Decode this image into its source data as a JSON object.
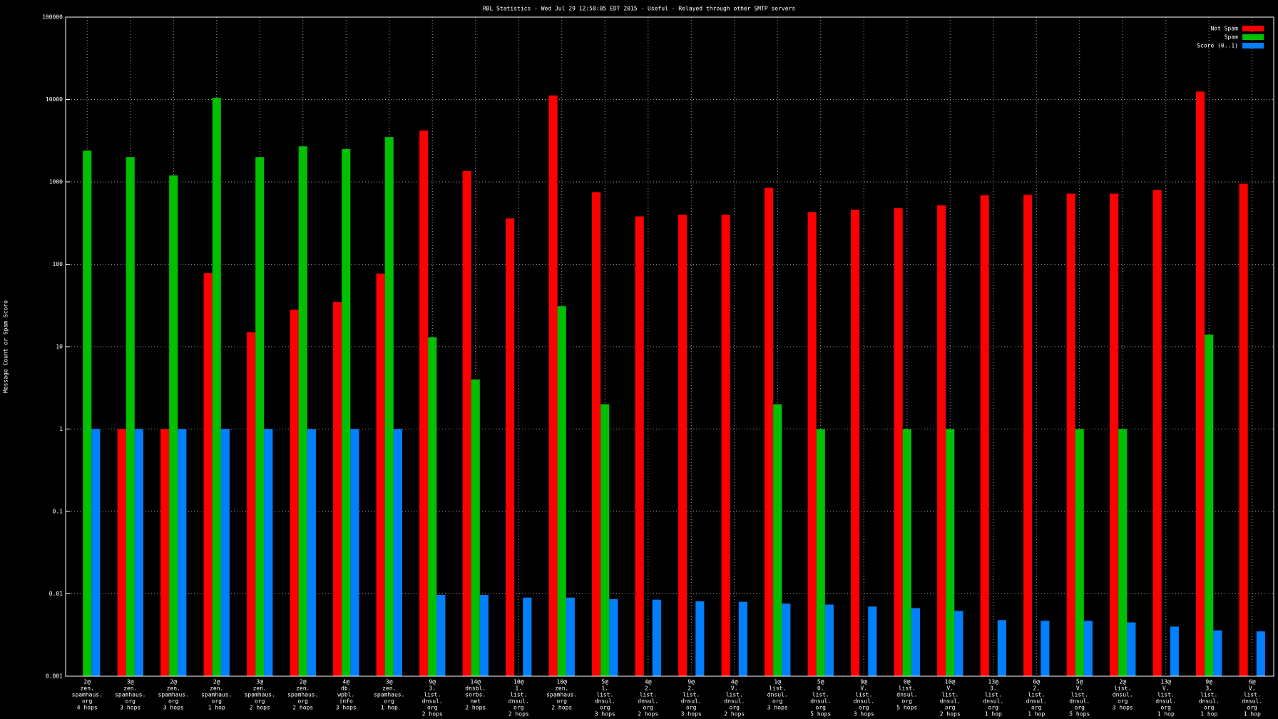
{
  "chart_data": {
    "type": "bar",
    "title": "RBL Statistics - Wed Jul 29 12:58:05 EDT 2015 - Useful - Relayed through other SMTP servers",
    "y_label": "Message Count or Spam Score",
    "log_scale": true,
    "grid": true,
    "legend": "top-right",
    "ylim": [
      0.001,
      100000
    ],
    "yticks": [
      0.001,
      0.01,
      0.1,
      1,
      10,
      100,
      1000,
      10000,
      100000
    ],
    "categories": [
      [
        "2@",
        "zen.",
        "spamhaus.",
        "org",
        "4 hops"
      ],
      [
        "3@",
        "zen.",
        "spamhaus.",
        "org",
        "3 hops"
      ],
      [
        "2@",
        "zen.",
        "spamhaus.",
        "org",
        "3 hops"
      ],
      [
        "2@",
        "zen.",
        "spamhaus.",
        "org",
        "1 hop"
      ],
      [
        "3@",
        "zen.",
        "spamhaus.",
        "org",
        "2 hops"
      ],
      [
        "2@",
        "zen.",
        "spamhaus.",
        "org",
        "2 hops"
      ],
      [
        "4@",
        "db.",
        "wpbl.",
        "info",
        "3 hops"
      ],
      [
        "3@",
        "zen.",
        "spamhaus.",
        "org",
        "1 hop"
      ],
      [
        "9@",
        "3.",
        "list.",
        "dnsul.",
        "org",
        "2 hops"
      ],
      [
        "14@",
        "dnsbl.",
        "sorbs.",
        "net",
        "2 hops"
      ],
      [
        "10@",
        "1.",
        "list.",
        "dnsul.",
        "org",
        "2 hops"
      ],
      [
        "10@",
        "zen.",
        "spamhaus.",
        "org",
        "2 hops"
      ],
      [
        "5@",
        "1.",
        "list.",
        "dnsul.",
        "org",
        "3 hops"
      ],
      [
        "4@",
        "2.",
        "list.",
        "dnsul.",
        "org",
        "2 hops"
      ],
      [
        "9@",
        "2.",
        "list.",
        "dnsul.",
        "org",
        "3 hops"
      ],
      [
        "4@",
        "V.",
        "list.",
        "dnsul.",
        "org",
        "2 hops"
      ],
      [
        "1@",
        "list.",
        "dnsul.",
        "org",
        "3 hops"
      ],
      [
        "5@",
        "0.",
        "list.",
        "dnsul.",
        "org",
        "5 hops"
      ],
      [
        "9@",
        "V.",
        "list.",
        "dnsul.",
        "org",
        "3 hops"
      ],
      [
        "0@",
        "list.",
        "dnsul.",
        "org",
        "5 hops"
      ],
      [
        "10@",
        "V.",
        "list.",
        "dnsul.",
        "org",
        "2 hops"
      ],
      [
        "13@",
        "3.",
        "list.",
        "dnsul.",
        "org",
        "1 hop"
      ],
      [
        "6@",
        "2.",
        "list.",
        "dnsul.",
        "org",
        "1 hop"
      ],
      [
        "5@",
        "V.",
        "list.",
        "dnsul.",
        "org",
        "5 hops"
      ],
      [
        "2@",
        "list.",
        "dnsul.",
        "org",
        "3 hops"
      ],
      [
        "13@",
        "V.",
        "list.",
        "dnsul.",
        "org",
        "1 hop"
      ],
      [
        "9@",
        "3.",
        "list.",
        "dnsul.",
        "org",
        "1 hop"
      ],
      [
        "6@",
        "V.",
        "list.",
        "dnsul.",
        "org",
        "1 hop"
      ]
    ],
    "series": [
      {
        "name": "Not Spam",
        "color": "#ff0000",
        "values": [
          null,
          1,
          1,
          78,
          15,
          28,
          35,
          77,
          4200,
          1350,
          360,
          11200,
          750,
          380,
          400,
          400,
          850,
          430,
          460,
          480,
          520,
          690,
          700,
          720,
          720,
          800,
          12500,
          950
        ]
      },
      {
        "name": "Spam",
        "color": "#00c000",
        "values": [
          2400,
          2000,
          1200,
          10500,
          2000,
          2700,
          2500,
          3500,
          13,
          4,
          null,
          31,
          2,
          null,
          null,
          null,
          2,
          1,
          null,
          1,
          1,
          null,
          null,
          1,
          1,
          null,
          14,
          null
        ]
      },
      {
        "name": "Score (0..1)",
        "color": "#0080ff",
        "values": [
          1,
          1,
          1,
          1,
          1,
          1,
          1,
          1,
          0.0097,
          0.0097,
          0.009,
          0.009,
          0.0086,
          0.0085,
          0.0081,
          0.008,
          0.0076,
          0.0074,
          0.007,
          0.0067,
          0.0062,
          0.0048,
          0.0047,
          0.0047,
          0.0045,
          0.004,
          0.0036,
          0.0035
        ]
      }
    ]
  }
}
